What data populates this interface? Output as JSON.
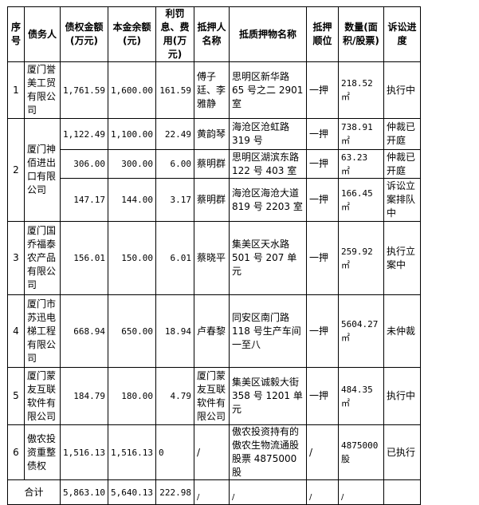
{
  "headers": [
    "序号",
    "债务人",
    "债权金额(万元)",
    "本金余额(元)",
    "利罚息、费用(万元)",
    "抵押人名称",
    "抵质押物名称",
    "抵押顺位",
    "数量(面积/股票)",
    "诉讼进度"
  ],
  "rows": [
    {
      "no": "1",
      "debtor": "厦门誉美工贸有限公司",
      "items": [
        {
          "claim": "1,761.59",
          "principal": "1,600.00",
          "interest": "161.59",
          "mortgagor": "傅子廷、李雅静",
          "collateral": "思明区新华路 65 号之二 2901 室",
          "rank": "一押",
          "quantity": "218.52 ㎡",
          "status": "执行中"
        }
      ]
    },
    {
      "no": "2",
      "debtor": "厦门神佰进出口有限公司",
      "items": [
        {
          "claim": "1,122.49",
          "principal": "1,100.00",
          "interest": "22.49",
          "mortgagor": "黄韵琴",
          "collateral": "海沧区沧虹路 319 号",
          "rank": "一押",
          "quantity": "738.91 ㎡",
          "status": "仲裁已开庭"
        },
        {
          "claim": "306.00",
          "principal": "300.00",
          "interest": "6.00",
          "mortgagor": "蔡明群",
          "collateral": "思明区湖滨东路 122 号 403 室",
          "rank": "一押",
          "quantity": "63.23 ㎡",
          "status": "仲裁已开庭"
        },
        {
          "claim": "147.17",
          "principal": "144.00",
          "interest": "3.17",
          "mortgagor": "蔡明群",
          "collateral": "海沧区海沧大道 819 号 2203 室",
          "rank": "一押",
          "quantity": "166.45 ㎡",
          "status": "诉讼立案排队中"
        }
      ]
    },
    {
      "no": "3",
      "debtor": "厦门国乔福泰农产品有限公司",
      "items": [
        {
          "claim": "156.01",
          "principal": "150.00",
          "interest": "6.01",
          "mortgagor": "蔡晓平",
          "collateral": "集美区天水路 501 号 207 单元",
          "rank": "一押",
          "quantity": "259.92 ㎡",
          "status": "执行立案中"
        }
      ]
    },
    {
      "no": "4",
      "debtor": "厦门市苏迅电梯工程有限公司",
      "items": [
        {
          "claim": "668.94",
          "principal": "650.00",
          "interest": "18.94",
          "mortgagor": "卢春黎",
          "collateral": "同安区南门路 118 号生产车间一至八",
          "rank": "一押",
          "quantity": "5604.27 ㎡",
          "status": "未仲裁"
        }
      ]
    },
    {
      "no": "5",
      "debtor": "厦门蒙友互联软件有限公司",
      "items": [
        {
          "claim": "184.79",
          "principal": "180.00",
          "interest": "4.79",
          "mortgagor": "厦门蒙友互联软件有限公司",
          "collateral": "集美区诚毅大街 358 号 1201 单元",
          "rank": "一押",
          "quantity": "484.35 ㎡",
          "status": "执行中"
        }
      ]
    },
    {
      "no": "6",
      "debtor": "傲农投资重整债权",
      "items": [
        {
          "claim": "1,516.13",
          "principal": "1,516.13",
          "interest": "0",
          "mortgagor": "/",
          "collateral": "傲农投资持有的傲农生物流通股股票 4875000 股",
          "rank": "/",
          "quantity": "4875000 股",
          "status": "已执行"
        }
      ]
    }
  ],
  "total": {
    "label": "合计",
    "claim": "5,863.10",
    "principal": "5,640.13",
    "interest": "222.98",
    "mortgagor": "/",
    "collateral": "/",
    "rank": "/",
    "quantity": "/",
    "status": ""
  }
}
